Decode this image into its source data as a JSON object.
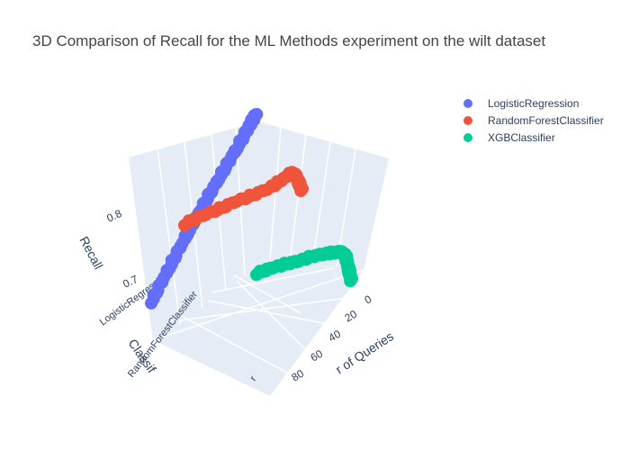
{
  "chart_data": {
    "type": "scatter3d",
    "title": "3D Comparison of Recall for the ML Methods experiment on the wilt dataset",
    "x_axis": {
      "label": "Number of Queries",
      "label_visible": "r of Queries",
      "ticks": [
        "0",
        "20",
        "40",
        "60",
        "80"
      ],
      "range": [
        0,
        100
      ]
    },
    "y_axis": {
      "label": "Classifier",
      "label_visible": "Classif",
      "ticks": [
        "LogisticRegression",
        "RandomForestClassifier"
      ],
      "ticks_visible": [
        "LogisticRegression",
        "RandomForestClassifier",
        "r"
      ]
    },
    "z_axis": {
      "label": "Recall",
      "ticks": [
        "0.7",
        "0.8"
      ],
      "range": [
        0.65,
        0.9
      ]
    },
    "legend": {
      "position": "top-right",
      "entries": [
        "LogisticRegression",
        "RandomForestClassifier",
        "XGBClassifier"
      ]
    },
    "series": [
      {
        "name": "LogisticRegression",
        "color": "#636efa",
        "x": [
          100,
          90,
          80,
          70,
          60,
          50,
          40,
          30,
          20,
          10,
          5,
          0
        ],
        "y": "LogisticRegression",
        "z": [
          0.768,
          0.78,
          0.792,
          0.805,
          0.818,
          0.83,
          0.842,
          0.855,
          0.868,
          0.885,
          0.895,
          0.905
        ]
      },
      {
        "name": "RandomForestClassifier",
        "color": "#ef553b",
        "x": [
          100,
          85,
          70,
          55,
          40,
          25,
          15,
          8,
          5,
          3,
          1,
          0
        ],
        "y": "RandomForestClassifier",
        "z": [
          0.843,
          0.845,
          0.844,
          0.845,
          0.843,
          0.844,
          0.85,
          0.855,
          0.845,
          0.835,
          0.822,
          0.815
        ]
      },
      {
        "name": "XGBClassifier",
        "color": "#00cc96",
        "x": [
          100,
          85,
          70,
          55,
          40,
          25,
          15,
          8,
          5,
          3,
          1,
          0
        ],
        "y": "XGBClassifier",
        "z": [
          0.81,
          0.812,
          0.812,
          0.811,
          0.812,
          0.81,
          0.808,
          0.805,
          0.795,
          0.78,
          0.768,
          0.76
        ]
      }
    ]
  }
}
